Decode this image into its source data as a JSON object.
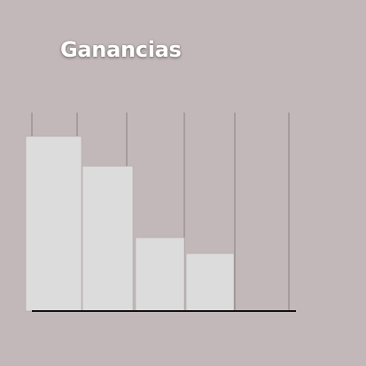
{
  "colors": {
    "background": "#c2b7b9",
    "bar_fill": "#dcdcdc",
    "bar_stroke": "#b3aaab",
    "grid": "#8a7f81",
    "baseline": "#111111",
    "title": "#ffffff"
  },
  "chart_data": {
    "type": "bar",
    "title": "Ganancias",
    "xlabel": "",
    "ylabel": "",
    "categories": [
      "",
      "",
      "",
      ""
    ],
    "values": [
      88,
      73,
      37,
      29
    ],
    "ylim": [
      0,
      100
    ],
    "grid": true,
    "legend": "none"
  }
}
